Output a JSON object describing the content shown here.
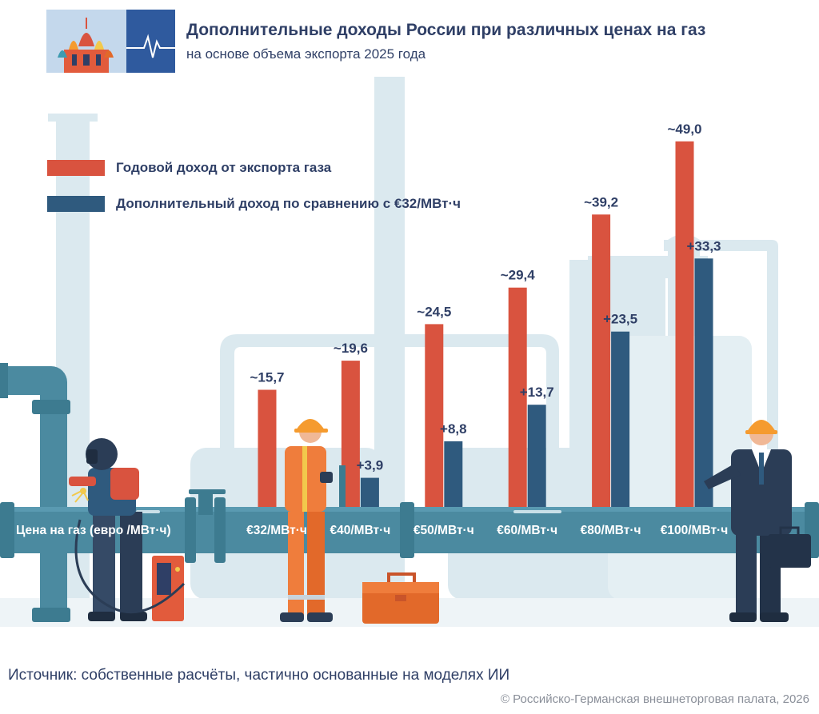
{
  "header": {
    "title": "Дополнительные доходы России при различных ценах на газ",
    "subtitle": "на основе объема экспорта 2025 года"
  },
  "legend": {
    "items": [
      {
        "label": "Годовой доход от экспорта газа",
        "color": "#d9533f"
      },
      {
        "label": "Дополнительный доход по сравнению с €32/МВт·ч",
        "color": "#2f5a7e"
      }
    ]
  },
  "pipe_axis": {
    "axis_title": "Цена на газ (евро /МВт·ч)"
  },
  "chart_data": {
    "type": "bar",
    "title": "Дополнительные доходы России при различных ценах на газ",
    "subtitle": "на основе объема экспорта 2025 года",
    "xlabel": "Цена на газ (евро /МВт·ч)",
    "ylabel": "",
    "categories": [
      "€32/МВт·ч",
      "€40/МВт·ч",
      "€50/МВт·ч",
      "€60/МВт·ч",
      "€80/МВт·ч",
      "€100/МВт·ч"
    ],
    "series": [
      {
        "name": "Годовой доход от экспорта газа",
        "color": "#d9533f",
        "values": [
          15.7,
          19.6,
          24.5,
          29.4,
          39.2,
          49.0
        ],
        "labels": [
          "~15,7",
          "~19,6",
          "~24,5",
          "~29,4",
          "~39,2",
          "~49,0"
        ]
      },
      {
        "name": "Дополнительный доход по сравнению с €32/МВт·ч",
        "color": "#2f5a7e",
        "values": [
          null,
          3.9,
          8.8,
          13.7,
          23.5,
          33.3
        ],
        "labels": [
          "",
          "+3,9",
          "+8,8",
          "+13,7",
          "+23,5",
          "+33,3"
        ]
      }
    ],
    "legend_position": "top-left",
    "grid": false
  },
  "footer": {
    "source": "Источник: собственные расчёты, частично основанные на моделях ИИ",
    "copyright": "© Российско-Германская внешнеторговая палата, 2026"
  }
}
